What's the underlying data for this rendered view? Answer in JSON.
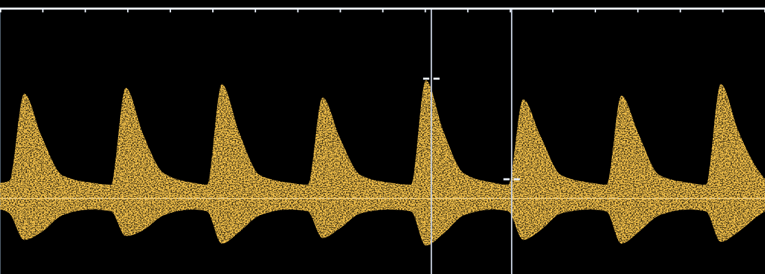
{
  "chart_data": {
    "type": "area",
    "x": [
      0,
      0.22,
      0.57,
      0.97,
      1.47,
      2.17,
      2.61,
      2.96,
      3.36,
      3.86,
      4.56,
      4.87,
      5.22,
      5.62,
      6.12,
      6.82,
      7.24,
      7.59,
      7.99,
      8.49,
      9.19,
      9.67,
      10.02,
      10.42,
      10.92,
      11.62,
      11.96,
      12.31,
      12.71,
      13.21,
      13.91,
      14.27,
      14.62,
      15.02,
      15.52,
      16.22,
      16.61,
      16.96,
      17.36,
      17.86,
      18
    ],
    "series": [
      {
        "color": "#f2c04a",
        "values": [
          8,
          9,
          55,
          33,
          12,
          8,
          7,
          58,
          34,
          13,
          8,
          7,
          60,
          35,
          12,
          8,
          7,
          53,
          32,
          12,
          8,
          7,
          62,
          36,
          13,
          8,
          7,
          52,
          33,
          12,
          8,
          7,
          54,
          34,
          12,
          8,
          7,
          60,
          36,
          14,
          10
        ],
        "lower": [
          -6,
          -8,
          -22,
          -18,
          -9,
          -6,
          -7,
          -20,
          -17,
          -9,
          -6,
          -7,
          -24,
          -18,
          -9,
          -6,
          -7,
          -21,
          -16,
          -8,
          -6,
          -7,
          -25,
          -19,
          -9,
          -6,
          -7,
          -22,
          -17,
          -8,
          -6,
          -7,
          -24,
          -18,
          -9,
          -6,
          -7,
          -23,
          -18,
          -9,
          -7
        ]
      }
    ],
    "calipers": [
      {
        "x": 10.15,
        "y": 62
      },
      {
        "x": 12.04,
        "y": 9
      }
    ],
    "xlim": [
      0,
      18
    ],
    "xticks": [
      1,
      2,
      3,
      4,
      5,
      6,
      7,
      8,
      9,
      10,
      11,
      12,
      13,
      14,
      15,
      16,
      17
    ],
    "ylim": [
      -40,
      100
    ],
    "yticks": [
      0
    ],
    "grid": true,
    "tick_labels": false
  }
}
